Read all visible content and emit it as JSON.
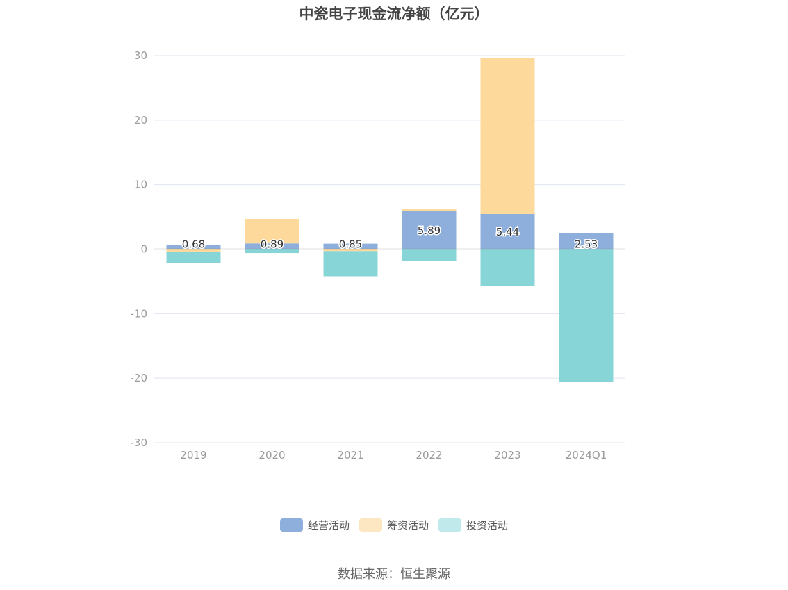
{
  "chart_data": {
    "type": "bar",
    "stacked": true,
    "title": "中瓷电子现金流净额（亿元）",
    "categories": [
      "2019",
      "2020",
      "2021",
      "2022",
      "2023",
      "2024Q1"
    ],
    "ylim": [
      -30,
      30
    ],
    "yticks": [
      30,
      20,
      10,
      0,
      -10,
      -20,
      -30
    ],
    "grid": true,
    "legend_position": "bottom",
    "series": [
      {
        "name": "经营活动",
        "color": "#8eaedb",
        "values": [
          0.68,
          0.89,
          0.85,
          5.89,
          5.44,
          2.53
        ],
        "labels": [
          "0.68",
          "0.89",
          "0.85",
          "5.89",
          "5.44",
          "2.53"
        ]
      },
      {
        "name": "筹资活动",
        "color": "#fdd99b",
        "values": [
          -0.4,
          3.8,
          -0.3,
          0.3,
          24.2,
          0
        ]
      },
      {
        "name": "投资活动",
        "color": "#88d5d8",
        "values": [
          -1.7,
          -0.6,
          -3.9,
          -1.8,
          -5.7,
          -20.6
        ]
      }
    ]
  },
  "legend": [
    {
      "label": "经营活动",
      "color": "#8eaedb"
    },
    {
      "label": "筹资活动",
      "color": "#fde6c2"
    },
    {
      "label": "投资活动",
      "color": "#c0e9eb"
    }
  ],
  "source": "数据来源：恒生聚源"
}
